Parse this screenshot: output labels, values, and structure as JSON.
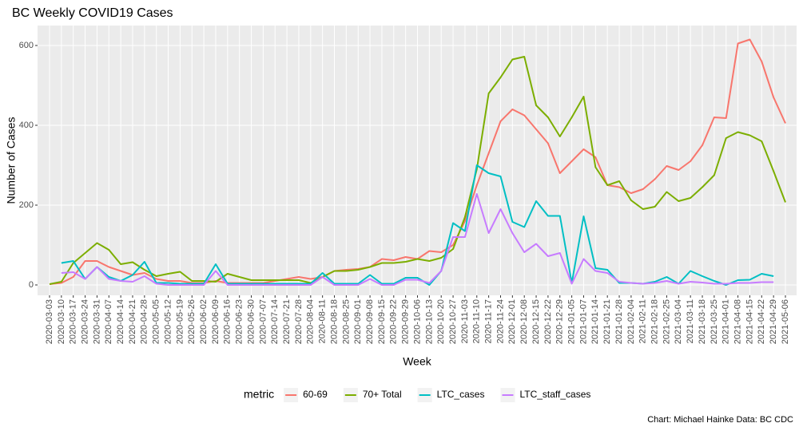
{
  "chart_data": {
    "type": "line",
    "title": "BC Weekly COVID19 Cases",
    "x_label": "Week",
    "y_label": "Number of Cases",
    "legend_title": "metric",
    "legend_position": "bottom",
    "caption": "Chart: Michael Hainke  Data: BC CDC",
    "grid": true,
    "categories": [
      "2020-03-03",
      "2020-03-10",
      "2020-03-17",
      "2020-03-24",
      "2020-03-31",
      "2020-04-07",
      "2020-04-14",
      "2020-04-21",
      "2020-04-28",
      "2020-05-05",
      "2020-05-12",
      "2020-05-19",
      "2020-05-26",
      "2020-06-02",
      "2020-06-09",
      "2020-06-16",
      "2020-06-23",
      "2020-06-30",
      "2020-07-07",
      "2020-07-14",
      "2020-07-21",
      "2020-07-28",
      "2020-08-04",
      "2020-08-11",
      "2020-08-18",
      "2020-08-25",
      "2020-09-01",
      "2020-09-08",
      "2020-09-15",
      "2020-09-22",
      "2020-09-29",
      "2020-10-06",
      "2020-10-13",
      "2020-10-20",
      "2020-10-27",
      "2020-11-03",
      "2020-11-10",
      "2020-11-17",
      "2020-11-24",
      "2020-12-01",
      "2020-12-08",
      "2020-12-15",
      "2020-12-22",
      "2020-12-29",
      "2021-01-05",
      "2021-01-07",
      "2021-01-14",
      "2021-01-21",
      "2021-01-28",
      "2021-02-04",
      "2021-02-11",
      "2021-02-18",
      "2021-02-25",
      "2021-03-04",
      "2021-03-11",
      "2021-03-18",
      "2021-03-25",
      "2021-04-01",
      "2021-04-08",
      "2021-04-15",
      "2021-04-22",
      "2021-04-29",
      "2021-05-06"
    ],
    "series": [
      {
        "name": "60-69",
        "color": "#F8766D",
        "values": [
          2,
          5,
          20,
          60,
          60,
          45,
          35,
          25,
          30,
          15,
          10,
          10,
          5,
          5,
          10,
          5,
          5,
          5,
          5,
          10,
          15,
          20,
          15,
          20,
          35,
          38,
          40,
          45,
          65,
          62,
          70,
          65,
          85,
          82,
          100,
          160,
          250,
          330,
          410,
          440,
          425,
          390,
          355,
          280,
          310,
          340,
          320,
          250,
          245,
          230,
          240,
          265,
          298,
          288,
          310,
          350,
          420,
          418,
          605,
          615,
          560,
          470,
          405
        ]
      },
      {
        "name": "70+ Total",
        "color": "#7CAE00",
        "values": [
          2,
          8,
          55,
          80,
          105,
          88,
          52,
          57,
          38,
          22,
          28,
          33,
          10,
          10,
          8,
          28,
          20,
          12,
          12,
          12,
          12,
          12,
          5,
          20,
          35,
          35,
          38,
          45,
          55,
          55,
          58,
          65,
          60,
          68,
          90,
          170,
          290,
          480,
          520,
          565,
          572,
          450,
          420,
          372,
          420,
          472,
          295,
          250,
          260,
          212,
          190,
          196,
          233,
          210,
          218,
          245,
          275,
          368,
          383,
          375,
          360,
          285,
          207
        ]
      },
      {
        "name": "LTC_cases",
        "color": "#00BFC4",
        "values": [
          null,
          55,
          60,
          15,
          45,
          20,
          10,
          25,
          58,
          5,
          5,
          3,
          3,
          3,
          52,
          3,
          3,
          3,
          3,
          3,
          3,
          3,
          3,
          30,
          3,
          3,
          3,
          25,
          3,
          3,
          18,
          18,
          0,
          35,
          155,
          135,
          300,
          280,
          272,
          158,
          145,
          210,
          173,
          173,
          5,
          172,
          42,
          38,
          5,
          5,
          3,
          8,
          20,
          3,
          35,
          22,
          10,
          0,
          12,
          13,
          28,
          22,
          null
        ]
      },
      {
        "name": "LTC_staff_cases",
        "color": "#C77CFF",
        "values": [
          null,
          30,
          32,
          15,
          45,
          15,
          10,
          8,
          22,
          3,
          0,
          0,
          0,
          0,
          35,
          0,
          0,
          0,
          0,
          0,
          0,
          0,
          0,
          20,
          0,
          0,
          0,
          15,
          0,
          0,
          13,
          13,
          5,
          35,
          120,
          120,
          228,
          130,
          190,
          130,
          82,
          103,
          72,
          80,
          3,
          65,
          35,
          30,
          8,
          5,
          3,
          5,
          10,
          3,
          8,
          6,
          3,
          3,
          5,
          5,
          7,
          7,
          null
        ]
      }
    ],
    "ylim": [
      -26,
      650
    ],
    "yticks": [
      0,
      200,
      400,
      600
    ]
  }
}
